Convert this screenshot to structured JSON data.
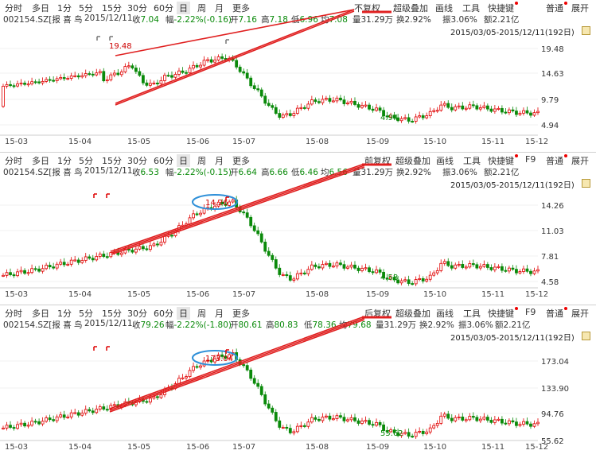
{
  "panels": [
    {
      "toolbar": {
        "periods": [
          "分时",
          "多日",
          "1分",
          "5分",
          "15分",
          "30分",
          "60分",
          "日",
          "周",
          "月",
          "更多"
        ],
        "active_period": "日",
        "fq_mode": "不复权",
        "overlay": "超级叠加",
        "draw": "画线",
        "tools": "工具",
        "shortcut": "快捷键",
        "normal": "普通",
        "expand": "展开"
      },
      "info": {
        "code_name": "002154.SZ[报 喜 鸟",
        "date": "2015/12/11",
        "close_label": "收",
        "close": "7.04",
        "change_label": "幅",
        "change": "-2.22%(-0.16)",
        "open_label": "开",
        "open": "7.16",
        "high_label": "高",
        "high": "7.18",
        "low_label": "低",
        "low": "6.96",
        "avg_label": "均",
        "avg": "7.08",
        "volume": "量31.29万",
        "turnover": "换2.92%",
        "amplitude": "振3.06%",
        "amount": "额2.21亿"
      },
      "range": "2015/03/05-2015/12/11(192日)",
      "y_ticks": [
        "19.48",
        "14.63",
        "9.79",
        "4.94"
      ],
      "x_ticks": [
        "15-03",
        "15-04",
        "15-05",
        "15-06",
        "15-07",
        "15-08",
        "15-09",
        "15-10",
        "15-11",
        "15-12"
      ],
      "annotations": {
        "peak": "19.48",
        "trough": "4.94"
      }
    },
    {
      "toolbar": {
        "periods": [
          "分时",
          "多日",
          "1分",
          "5分",
          "15分",
          "30分",
          "60分",
          "日",
          "周",
          "月",
          "更多"
        ],
        "active_period": "日",
        "fq_mode": "前复权",
        "overlay": "超级叠加",
        "draw": "画线",
        "tools": "工具",
        "shortcut": "快捷键",
        "f9": "F9",
        "normal": "普通",
        "expand": "展开"
      },
      "info": {
        "code_name": "002154.SZ[报 喜 鸟",
        "date": "2015/12/11",
        "close_label": "收",
        "close": "6.53",
        "change_label": "幅",
        "change": "-2.22%(-0.15)",
        "open_label": "开",
        "open": "6.64",
        "high_label": "高",
        "high": "6.66",
        "low_label": "低",
        "low": "6.46",
        "avg_label": "均",
        "avg": "6.56",
        "volume": "量31.29万",
        "turnover": "换2.92%",
        "amplitude": "振3.06%",
        "amount": "额2.21亿"
      },
      "range": "2015/03/05-2015/12/11(192日)",
      "y_ticks": [
        "14.26",
        "11.03",
        "7.81",
        "4.58"
      ],
      "x_ticks": [
        "15-03",
        "15-04",
        "15-05",
        "15-06",
        "15-07",
        "15-08",
        "15-09",
        "15-10",
        "15-11",
        "15-12"
      ],
      "annotations": {
        "peak": "14.26",
        "trough": "4.58"
      }
    },
    {
      "toolbar": {
        "periods": [
          "分时",
          "多日",
          "1分",
          "5分",
          "15分",
          "30分",
          "60分",
          "日",
          "周",
          "月",
          "更多"
        ],
        "active_period": "日",
        "fq_mode": "后复权",
        "overlay": "超级叠加",
        "draw": "画线",
        "tools": "工具",
        "shortcut": "快捷键",
        "f9": "F9",
        "normal": "普通",
        "expand": "展开"
      },
      "info": {
        "code_name": "002154.SZ[报 喜 鸟",
        "date": "2015/12/11",
        "close_label": "收",
        "close": "79.26",
        "change_label": "幅",
        "change": "-2.22%(-1.80)",
        "open_label": "开",
        "open": "80.61",
        "high_label": "高",
        "high": "80.83",
        "low_label": "低",
        "low": "78.36",
        "avg_label": "均",
        "avg": "79.68",
        "volume": "量31.29万",
        "turnover": "换2.92%",
        "amplitude": "振3.06%",
        "amount": "额2.21亿"
      },
      "range": "2015/03/05-2015/12/11(192日)",
      "y_ticks": [
        "173.04",
        "133.90",
        "94.76",
        "55.62"
      ],
      "x_ticks": [
        "15-03",
        "15-04",
        "15-05",
        "15-06",
        "15-07",
        "15-08",
        "15-09",
        "15-10",
        "15-11",
        "15-12"
      ],
      "annotations": {
        "peak": "173.04",
        "trough": "55.62"
      }
    }
  ],
  "colors": {
    "up": "#e00000",
    "down": "#0a8a0a",
    "annotation_line": "#e02020",
    "circle": "#2e8fd8"
  }
}
